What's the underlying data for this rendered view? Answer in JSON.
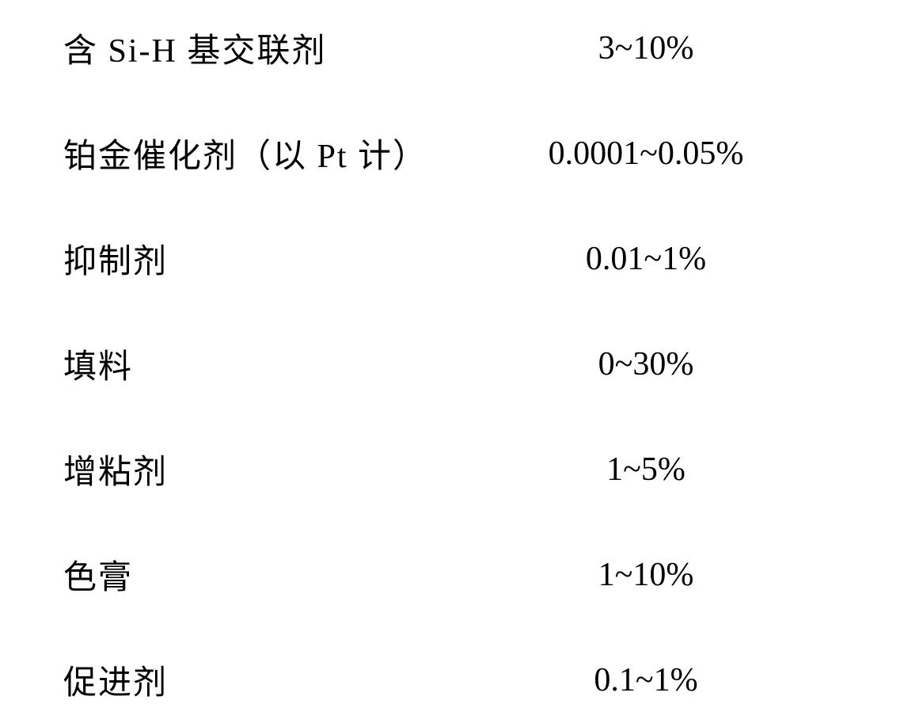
{
  "rows": [
    {
      "label": "含 Si-H 基交联剂",
      "value": "3~10%"
    },
    {
      "label": "铂金催化剂（以 Pt 计）",
      "value": "0.0001~0.05%"
    },
    {
      "label": "抑制剂",
      "value": "0.01~1%"
    },
    {
      "label": "填料",
      "value": "0~30%"
    },
    {
      "label": "增粘剂",
      "value": "1~5%"
    },
    {
      "label": "色膏",
      "value": "1~10%"
    },
    {
      "label": "促进剂",
      "value": "0.1~1%"
    }
  ],
  "styling": {
    "background_color": "#ffffff",
    "text_color": "#000000",
    "label_fontsize": 42,
    "value_fontsize": 42,
    "row_spacing": 72,
    "label_col_width": 490,
    "font_family_cjk": "SimSun",
    "font_family_latin": "Times New Roman"
  }
}
